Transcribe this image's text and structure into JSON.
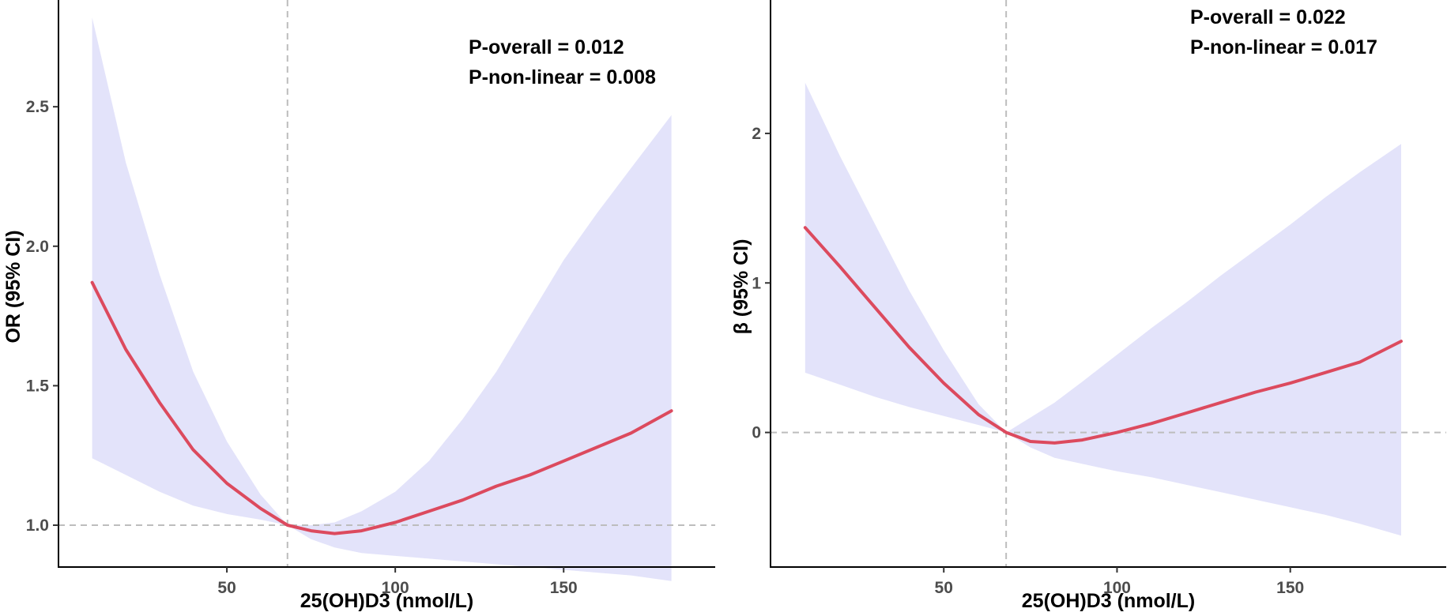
{
  "chart_data": [
    {
      "type": "line",
      "xlabel": "25(OH)D3 (nmol/L)",
      "ylabel": "OR (95% CI)",
      "xlim": [
        0,
        195
      ],
      "ylim": [
        0.85,
        2.86
      ],
      "x_ticks": [
        50,
        100,
        150
      ],
      "y_ticks": [
        1.0,
        1.5,
        2.0,
        2.5
      ],
      "x_tick_labels": [
        "50",
        "100",
        "150"
      ],
      "y_tick_labels": [
        "1.0",
        "1.5",
        "2.0",
        "2.5"
      ],
      "reference_x": 68,
      "reference_y": 1.0,
      "grid": false,
      "annotations": [
        "P-overall = 0.012",
        "P-non-linear = 0.008"
      ],
      "line_color": "#dc4a5e",
      "band_color": "#e3e3fa",
      "x": [
        10,
        20,
        30,
        40,
        50,
        60,
        68,
        75,
        82,
        90,
        100,
        110,
        120,
        130,
        140,
        150,
        160,
        170,
        182
      ],
      "y": [
        1.87,
        1.63,
        1.44,
        1.27,
        1.15,
        1.06,
        1.0,
        0.98,
        0.97,
        0.98,
        1.01,
        1.05,
        1.09,
        1.14,
        1.18,
        1.23,
        1.28,
        1.33,
        1.41
      ],
      "lower": [
        1.24,
        1.18,
        1.12,
        1.07,
        1.04,
        1.02,
        1.0,
        0.95,
        0.92,
        0.9,
        0.89,
        0.88,
        0.87,
        0.86,
        0.85,
        0.84,
        0.83,
        0.82,
        0.8
      ],
      "upper": [
        2.82,
        2.3,
        1.9,
        1.55,
        1.3,
        1.11,
        1.0,
        1.0,
        1.01,
        1.05,
        1.12,
        1.23,
        1.38,
        1.55,
        1.75,
        1.95,
        2.12,
        2.28,
        2.47
      ]
    },
    {
      "type": "line",
      "xlabel": "25(OH)D3 (nmol/L)",
      "ylabel": "β (95% CI)",
      "xlim": [
        0,
        195
      ],
      "ylim": [
        -0.9,
        2.85
      ],
      "x_ticks": [
        50,
        100,
        150
      ],
      "y_ticks": [
        0,
        1,
        2
      ],
      "x_tick_labels": [
        "50",
        "100",
        "150"
      ],
      "y_tick_labels": [
        "0",
        "1",
        "2"
      ],
      "reference_x": 68,
      "reference_y": 0,
      "grid": false,
      "annotations": [
        "P-overall = 0.022",
        "P-non-linear = 0.017"
      ],
      "line_color": "#dc4a5e",
      "band_color": "#e3e3fa",
      "x": [
        10,
        20,
        30,
        40,
        50,
        60,
        68,
        75,
        82,
        90,
        100,
        110,
        120,
        130,
        140,
        150,
        160,
        170,
        182
      ],
      "y": [
        1.37,
        1.11,
        0.84,
        0.57,
        0.33,
        0.12,
        0.0,
        -0.06,
        -0.07,
        -0.05,
        0.0,
        0.06,
        0.13,
        0.2,
        0.27,
        0.33,
        0.4,
        0.47,
        0.61
      ],
      "lower": [
        0.4,
        0.32,
        0.24,
        0.17,
        0.11,
        0.05,
        0.0,
        -0.1,
        -0.17,
        -0.21,
        -0.26,
        -0.3,
        -0.35,
        -0.4,
        -0.45,
        -0.5,
        -0.55,
        -0.61,
        -0.69
      ],
      "upper": [
        2.34,
        1.85,
        1.4,
        0.95,
        0.55,
        0.19,
        0.0,
        0.1,
        0.2,
        0.34,
        0.52,
        0.7,
        0.87,
        1.05,
        1.22,
        1.39,
        1.57,
        1.74,
        1.93
      ]
    }
  ]
}
